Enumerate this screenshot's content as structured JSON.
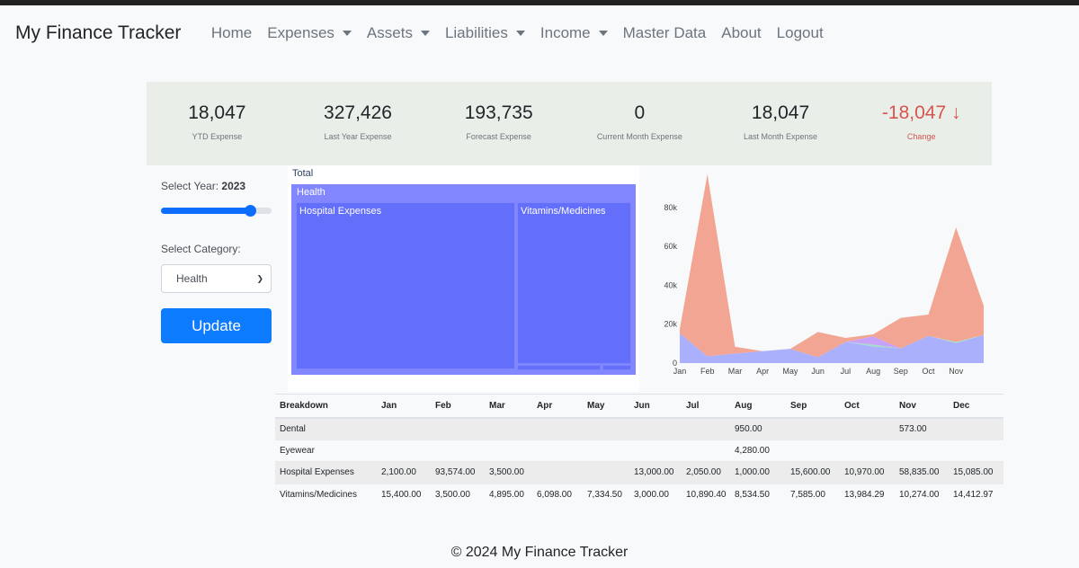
{
  "navbar": {
    "brand": "My Finance Tracker",
    "items": [
      {
        "label": "Home",
        "dropdown": false
      },
      {
        "label": "Expenses",
        "dropdown": true
      },
      {
        "label": "Assets",
        "dropdown": true
      },
      {
        "label": "Liabilities",
        "dropdown": true
      },
      {
        "label": "Income",
        "dropdown": true
      },
      {
        "label": "Master Data",
        "dropdown": false
      },
      {
        "label": "About",
        "dropdown": false
      },
      {
        "label": "Logout",
        "dropdown": false
      }
    ]
  },
  "kpis": [
    {
      "value": "18,047",
      "label": "YTD Expense"
    },
    {
      "value": "327,426",
      "label": "Last Year Expense"
    },
    {
      "value": "193,735",
      "label": "Forecast Expense"
    },
    {
      "value": "0",
      "label": "Current Month Expense"
    },
    {
      "value": "18,047",
      "label": "Last Month Expense"
    },
    {
      "value": "-18,047 ↓",
      "label": "Change"
    }
  ],
  "controls": {
    "year_label": "Select Year:",
    "year_value": "2023",
    "slider_fraction": 0.81,
    "category_label": "Select Category:",
    "category_value": "Health",
    "update_label": "Update"
  },
  "treemap": {
    "root": "Total",
    "parent": "Health",
    "leaves": [
      "Hospital Expenses",
      "Vitamins/Medicines"
    ]
  },
  "colors": {
    "accent": "#0d7bfd",
    "treemap": "#636efa",
    "area_blue": "#aab0fb",
    "area_salmon": "#f2a592",
    "area_purple": "#c8a2f8",
    "area_teal": "#9ee0c8",
    "change": "#d9534f"
  },
  "chart_data": {
    "type": "area",
    "x": [
      "Jan",
      "Feb",
      "Mar",
      "Apr",
      "May",
      "Jun",
      "Jul",
      "Aug",
      "Sep",
      "Oct",
      "Nov",
      "Dec"
    ],
    "x_ticks": [
      "Jan",
      "Feb",
      "Mar",
      "Apr",
      "May",
      "Jun",
      "Jul",
      "Aug",
      "Sep",
      "Oct",
      "Nov"
    ],
    "y_ticks": [
      "0",
      "20k",
      "40k",
      "60k",
      "80k"
    ],
    "ylim": [
      0,
      97000
    ],
    "stacked": true,
    "series": [
      {
        "values": [
          15400,
          3500,
          4895,
          6098,
          7334.5,
          3000,
          10890.4,
          8534.5,
          7585,
          13984.29,
          10274,
          14412.97
        ],
        "color": "#aab0fb"
      },
      {
        "values": [
          0,
          0,
          0,
          0,
          0,
          0,
          0,
          950,
          0,
          0,
          573,
          0
        ],
        "color": "#9ee0c8"
      },
      {
        "values": [
          0,
          0,
          0,
          0,
          0,
          0,
          0,
          4280,
          0,
          0,
          0,
          0
        ],
        "color": "#c8a2f8"
      },
      {
        "values": [
          2100,
          93574,
          3500,
          0,
          0,
          13000,
          2050,
          1000,
          15600,
          10970,
          58835,
          15085
        ],
        "color": "#f2a592"
      }
    ]
  },
  "table": {
    "headers": [
      "Breakdown",
      "Jan",
      "Feb",
      "Mar",
      "Apr",
      "May",
      "Jun",
      "Jul",
      "Aug",
      "Sep",
      "Oct",
      "Nov",
      "Dec"
    ],
    "rows": [
      [
        "Dental",
        "",
        "",
        "",
        "",
        "",
        "",
        "",
        "950.00",
        "",
        "",
        "573.00",
        ""
      ],
      [
        "Eyewear",
        "",
        "",
        "",
        "",
        "",
        "",
        "",
        "4,280.00",
        "",
        "",
        "",
        ""
      ],
      [
        "Hospital Expenses",
        "2,100.00",
        "93,574.00",
        "3,500.00",
        "",
        "",
        "13,000.00",
        "2,050.00",
        "1,000.00",
        "15,600.00",
        "10,970.00",
        "58,835.00",
        "15,085.00"
      ],
      [
        "Vitamins/Medicines",
        "15,400.00",
        "3,500.00",
        "4,895.00",
        "6,098.00",
        "7,334.50",
        "3,000.00",
        "10,890.40",
        "8,534.50",
        "7,585.00",
        "13,984.29",
        "10,274.00",
        "14,412.97"
      ]
    ]
  },
  "footer": "© 2024 My Finance Tracker"
}
